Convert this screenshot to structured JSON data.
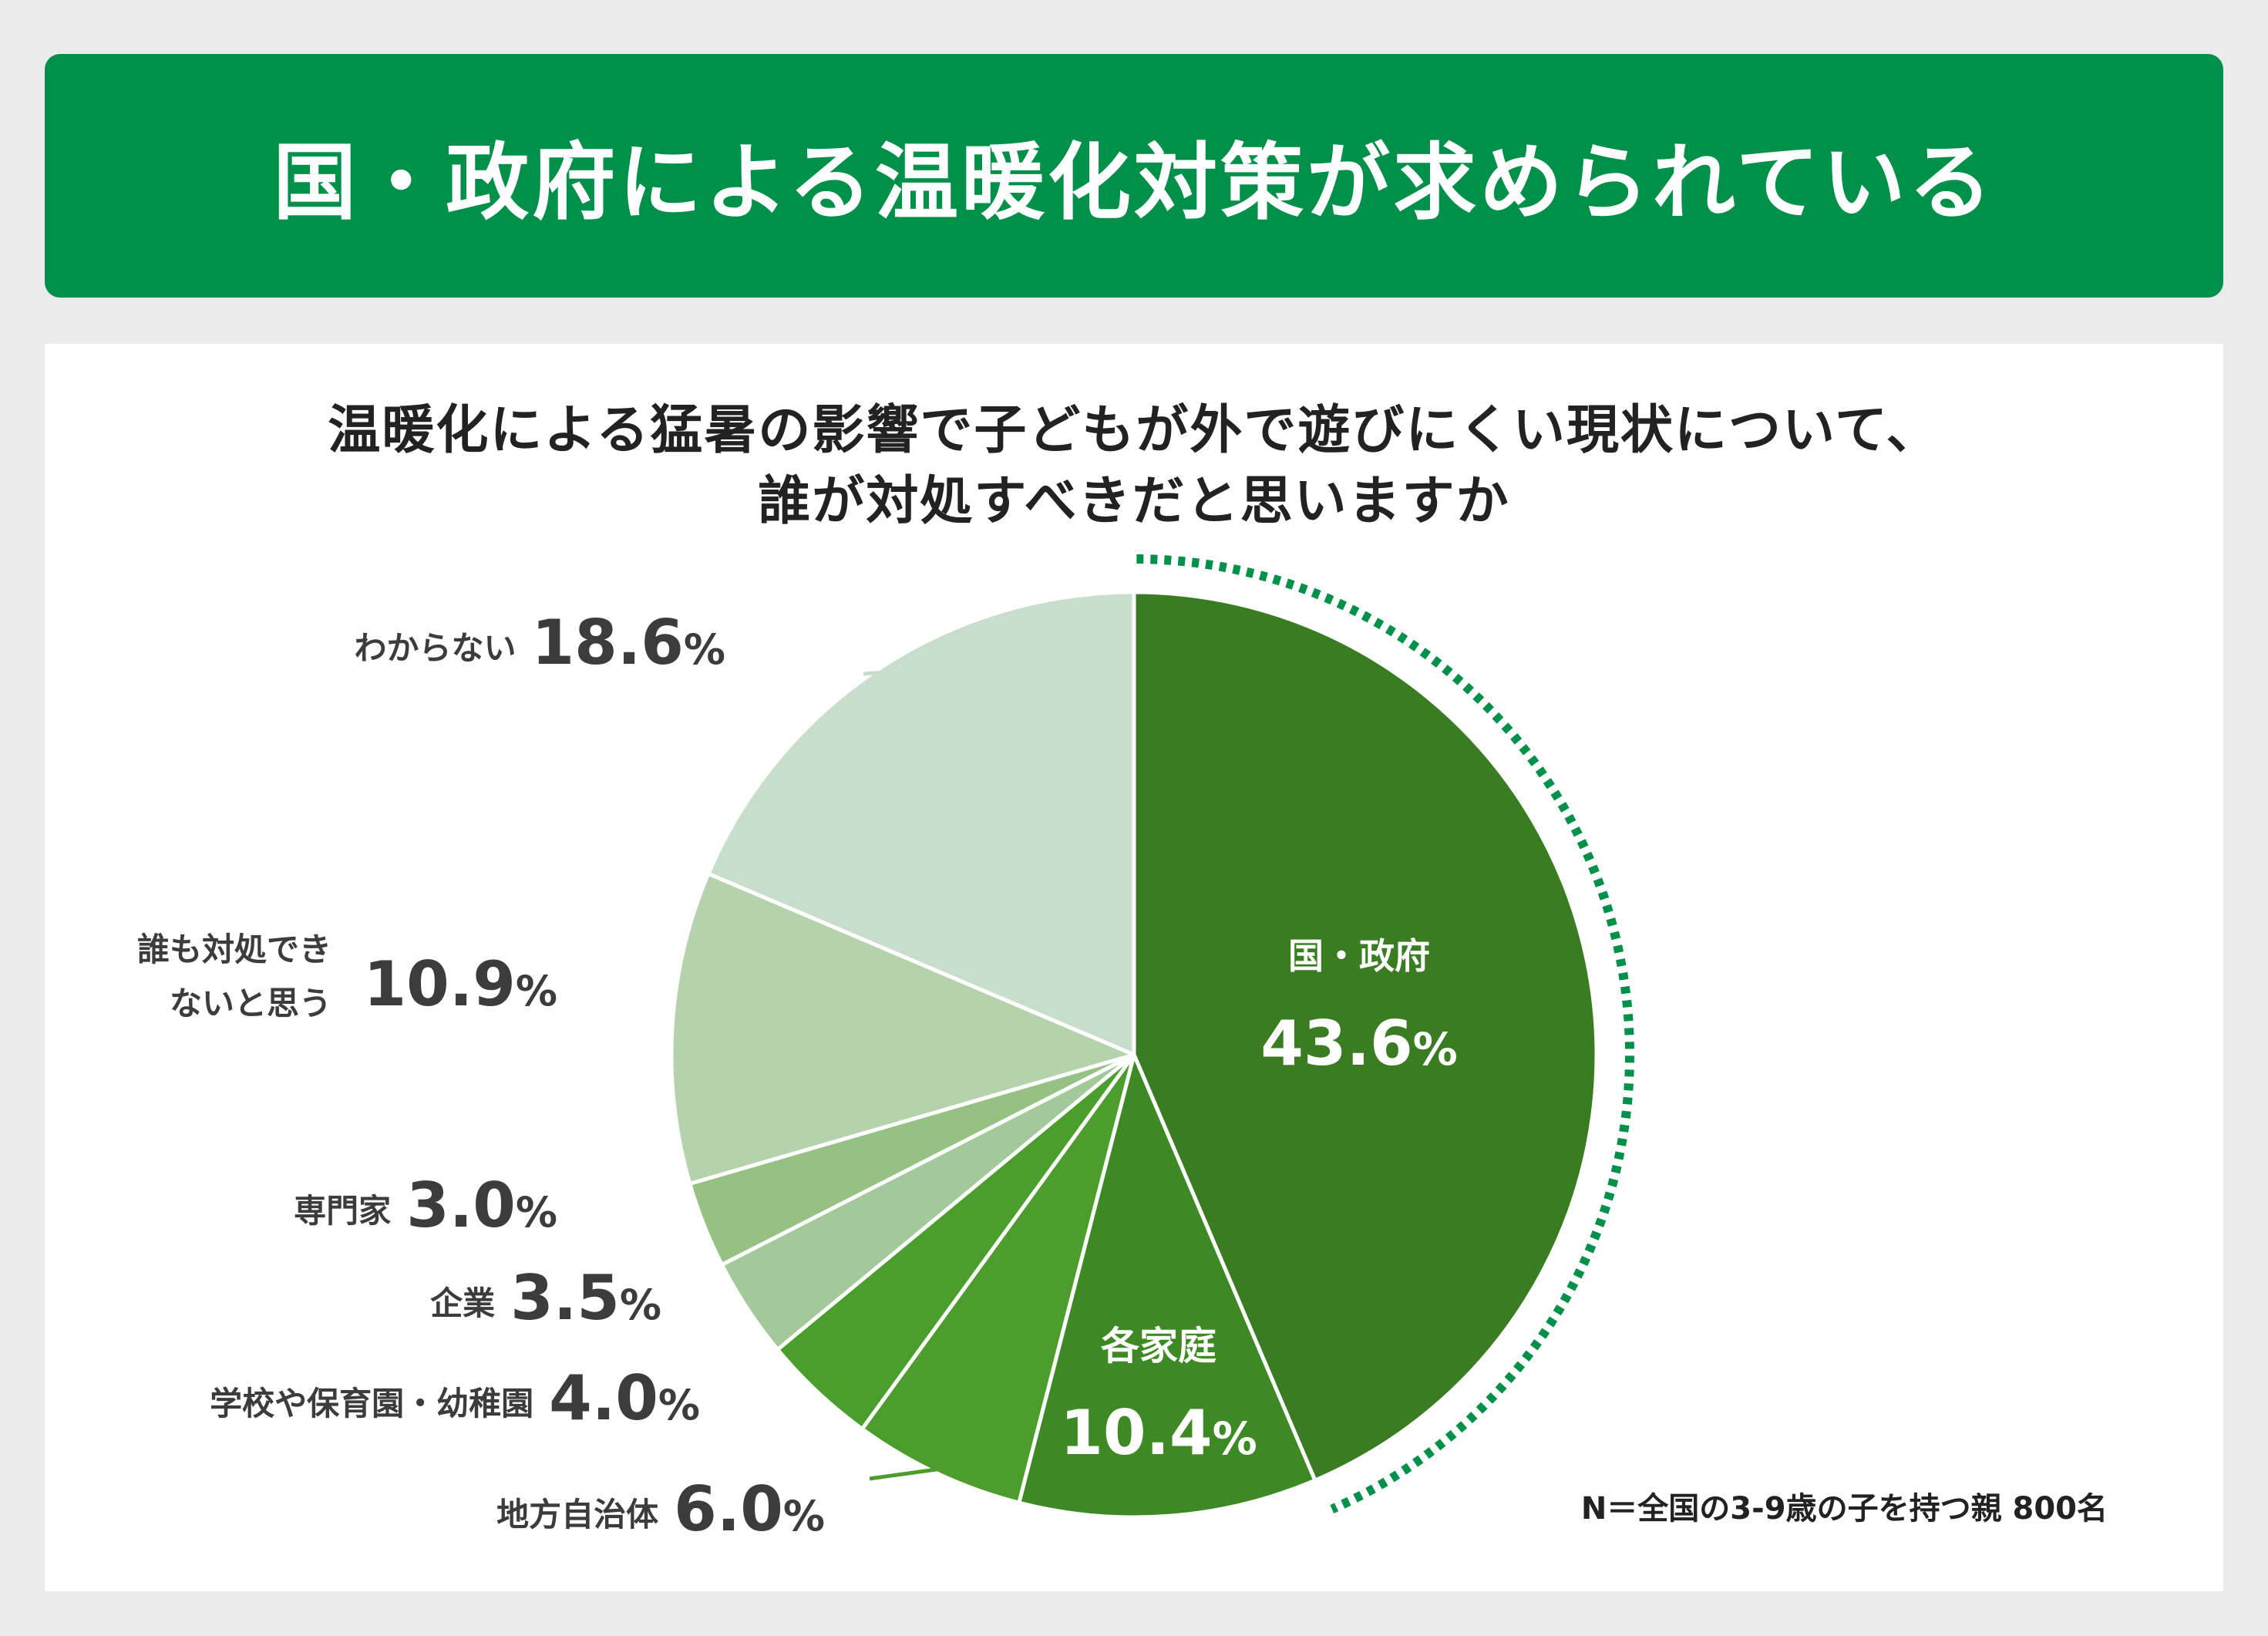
{
  "banner": {
    "title": "国・政府による温暖化対策が求められている"
  },
  "question": {
    "line1": "温暖化による猛暑の影響で子どもが外で遊びにくい現状について、",
    "line2": "誰が対処すべきだと思いますか"
  },
  "footnote": "N＝全国の3-9歳の子を持つ親 800名",
  "colors": {
    "banner": "#00904a",
    "highlight_ring": "#00904a",
    "label_text": "#3c3c3c"
  },
  "chart_data": {
    "type": "pie",
    "unit": "%",
    "start": "12 o'clock, clockwise",
    "slices": [
      {
        "label": "国・政府",
        "value": 43.6,
        "display": "43.6",
        "color": "#3a7c22",
        "label_placement": "inside",
        "highlighted": true
      },
      {
        "label": "各家庭",
        "value": 10.4,
        "display": "10.4",
        "color": "#3d8a24",
        "label_placement": "inside"
      },
      {
        "label": "地方自治体",
        "value": 6.0,
        "display": "6.0",
        "color": "#4d9d2c",
        "label_placement": "outside"
      },
      {
        "label": "学校や保育園・幼稚園",
        "value": 4.0,
        "display": "4.0",
        "color": "#4a9e2b",
        "label_placement": "outside"
      },
      {
        "label": "企業",
        "value": 3.5,
        "display": "3.5",
        "color": "#a3c99a",
        "label_placement": "outside"
      },
      {
        "label": "専門家",
        "value": 3.0,
        "display": "3.0",
        "color": "#95c183",
        "label_placement": "outside"
      },
      {
        "label_lines": [
          "誰も対処でき",
          "ないと思う"
        ],
        "value": 10.9,
        "display": "10.9",
        "color": "#b4d3ad",
        "label_placement": "outside"
      },
      {
        "label": "わからない",
        "value": 18.6,
        "display": "18.6",
        "color": "#c9deca",
        "label_placement": "outside"
      }
    ]
  }
}
